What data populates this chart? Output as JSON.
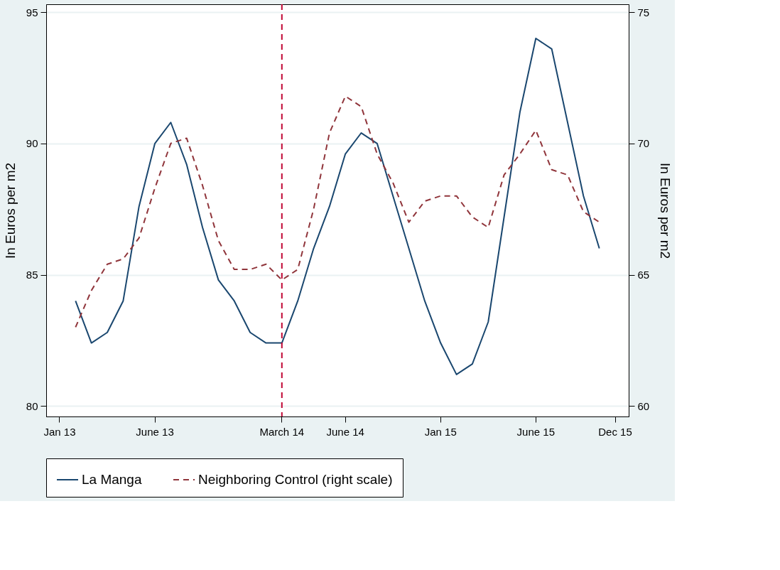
{
  "chart_data": {
    "type": "line",
    "categories": [
      "Jan 13",
      null,
      null,
      null,
      null,
      null,
      "June 13",
      null,
      null,
      null,
      null,
      null,
      null,
      null,
      "March 14",
      null,
      null,
      null,
      "June 14",
      null,
      null,
      null,
      null,
      null,
      "Jan 15",
      null,
      null,
      null,
      null,
      null,
      "June 15",
      null,
      null,
      null,
      null,
      "Dec 15"
    ],
    "ylabel": "In Euros per m2",
    "y2label": "In Euros per m2",
    "ylim": [
      79.6,
      95.3
    ],
    "yticks": [
      80,
      85,
      90,
      95
    ],
    "y2lim": [
      59.6,
      75.3
    ],
    "y2ticks": [
      60,
      65,
      70,
      75
    ],
    "series": [
      {
        "name": "La Manga",
        "color": "#1a476f",
        "line_style": "solid",
        "values": [
          null,
          84.0,
          82.4,
          82.8,
          84.0,
          87.6,
          90.0,
          90.8,
          89.2,
          86.8,
          84.8,
          84.0,
          82.8,
          82.4,
          82.4,
          84.0,
          86.0,
          87.6,
          89.6,
          90.4,
          90.0,
          88.0,
          86.0,
          84.0,
          82.4,
          81.2,
          81.6,
          83.2,
          87.2,
          91.2,
          94.0,
          93.6,
          90.8,
          88.0,
          86.0,
          null
        ]
      },
      {
        "name": "Neighboring Control (right scale)",
        "color": "#90353b",
        "line_style": "dashed",
        "axis": "y2",
        "values": [
          null,
          63.0,
          64.4,
          65.4,
          65.6,
          66.4,
          68.3,
          70.0,
          70.2,
          68.4,
          66.3,
          65.2,
          65.2,
          65.4,
          64.8,
          65.2,
          67.5,
          70.4,
          71.8,
          71.4,
          69.6,
          68.5,
          67.0,
          67.8,
          68.0,
          68.0,
          67.2,
          66.8,
          68.8,
          69.6,
          70.5,
          69.0,
          68.8,
          67.4,
          67.0,
          null
        ]
      }
    ],
    "ref_lines": [
      {
        "axis": "x",
        "value": "March 14",
        "color": "#c10534",
        "line_style": "dashed"
      }
    ],
    "grid": "y",
    "legend": "bottom"
  }
}
